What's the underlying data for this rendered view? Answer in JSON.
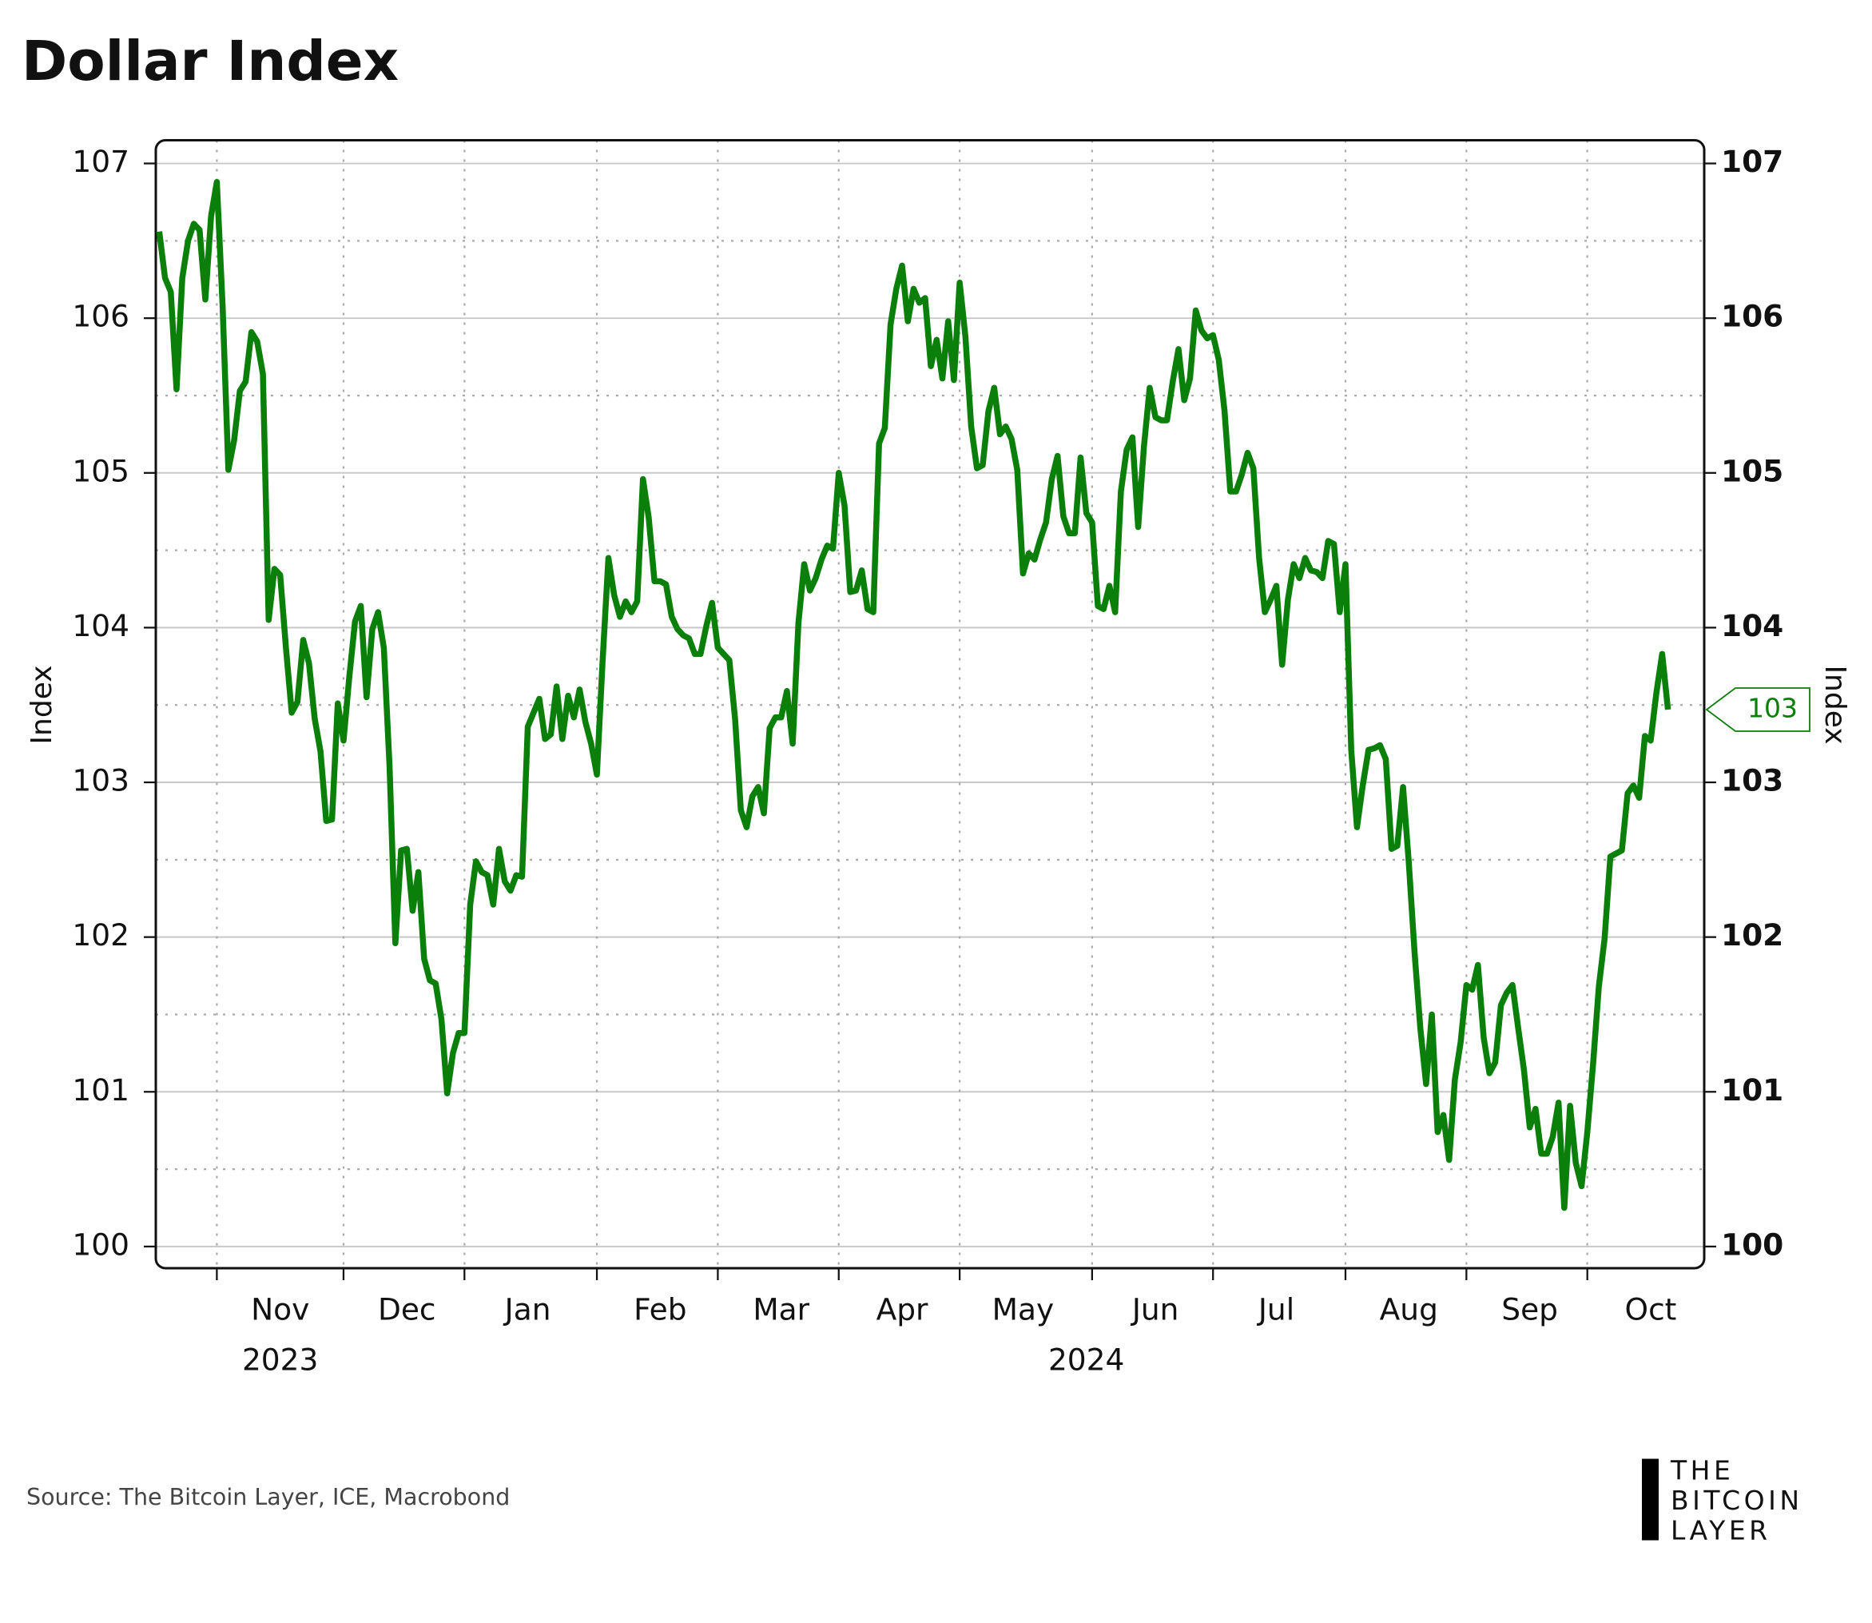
{
  "chart_data": {
    "type": "line",
    "title": "Dollar Index",
    "y_label": "Index",
    "y2_label": "Index",
    "source": "Source: The Bitcoin Layer, ICE, Macrobond",
    "logo": [
      "THE",
      "BITCOIN",
      "LAYER"
    ],
    "last_label": "103",
    "grid": true,
    "xlim": [
      -0.6,
      268.3
    ],
    "xticks": [
      {
        "value": 10,
        "label": "Nov"
      },
      {
        "value": 32,
        "label": "Dec"
      },
      {
        "value": 53,
        "label": "Jan"
      },
      {
        "value": 76,
        "label": "Feb"
      },
      {
        "value": 97,
        "label": "Mar"
      },
      {
        "value": 118,
        "label": "Apr"
      },
      {
        "value": 139,
        "label": "May"
      },
      {
        "value": 162,
        "label": "Jun"
      },
      {
        "value": 183,
        "label": "Jul"
      },
      {
        "value": 206,
        "label": "Aug"
      },
      {
        "value": 227,
        "label": "Sep"
      },
      {
        "value": 248,
        "label": "Oct"
      }
    ],
    "year_labels": [
      {
        "value": 10,
        "label": "2023"
      },
      {
        "value": 150,
        "label": "2024"
      }
    ],
    "ylim": [
      99.86,
      107.15
    ],
    "yticks": [
      100,
      101,
      102,
      103,
      104,
      105,
      106,
      107
    ],
    "y_minor_ticks": [
      100.5,
      101.5,
      102.5,
      103.5,
      104.5,
      105.5,
      106.5
    ],
    "y2lim": [
      99.86,
      107.15
    ],
    "y2ticks": [
      100,
      101,
      102,
      103,
      104,
      105,
      106,
      107
    ],
    "series": [
      {
        "name": "Dollar Index",
        "color": "#0a7f0a",
        "values": [
          106.56,
          106.26,
          106.17,
          105.54,
          106.26,
          106.5,
          106.61,
          106.57,
          106.12,
          106.66,
          106.88,
          106.08,
          105.02,
          105.21,
          105.53,
          105.59,
          105.91,
          105.85,
          105.64,
          104.05,
          104.38,
          104.34,
          103.87,
          103.45,
          103.52,
          103.92,
          103.77,
          103.41,
          103.2,
          102.75,
          102.76,
          103.51,
          103.27,
          103.68,
          104.04,
          104.14,
          103.55,
          103.99,
          104.1,
          103.87,
          103.1,
          101.96,
          102.56,
          102.57,
          102.17,
          102.42,
          101.86,
          101.72,
          101.7,
          101.47,
          100.99,
          101.25,
          101.38,
          101.38,
          102.21,
          102.49,
          102.42,
          102.4,
          102.21,
          102.57,
          102.36,
          102.3,
          102.4,
          102.39,
          103.36,
          103.45,
          103.54,
          103.28,
          103.31,
          103.62,
          103.28,
          103.56,
          103.42,
          103.6,
          103.39,
          103.25,
          103.05,
          103.79,
          104.45,
          104.21,
          104.07,
          104.17,
          104.1,
          104.17,
          104.96,
          104.71,
          104.3,
          104.3,
          104.28,
          104.07,
          103.99,
          103.95,
          103.93,
          103.83,
          103.83,
          104.01,
          104.16,
          103.87,
          103.83,
          103.79,
          103.41,
          102.82,
          102.71,
          102.91,
          102.97,
          102.8,
          103.35,
          103.42,
          103.42,
          103.59,
          103.25,
          104.03,
          104.41,
          104.24,
          104.32,
          104.44,
          104.53,
          104.51,
          105.0,
          104.79,
          104.23,
          104.24,
          104.37,
          104.12,
          104.1,
          105.19,
          105.29,
          105.96,
          106.19,
          106.34,
          105.98,
          106.19,
          106.1,
          106.13,
          105.69,
          105.86,
          105.61,
          105.98,
          105.6,
          106.23,
          105.88,
          105.3,
          105.03,
          105.05,
          105.4,
          105.55,
          105.25,
          105.3,
          105.22,
          105.02,
          104.35,
          104.48,
          104.44,
          104.57,
          104.68,
          104.96,
          105.11,
          104.72,
          104.61,
          104.61,
          105.1,
          104.74,
          104.68,
          104.14,
          104.12,
          104.27,
          104.1,
          104.88,
          105.15,
          105.23,
          104.65,
          105.17,
          105.55,
          105.36,
          105.34,
          105.34,
          105.59,
          105.8,
          105.47,
          105.61,
          106.05,
          105.92,
          105.87,
          105.89,
          105.73,
          105.4,
          104.88,
          104.88,
          104.99,
          105.13,
          105.03,
          104.45,
          104.1,
          104.18,
          104.27,
          103.76,
          104.18,
          104.41,
          104.32,
          104.45,
          104.37,
          104.36,
          104.32,
          104.56,
          104.54,
          104.1,
          104.41,
          103.21,
          102.71,
          102.98,
          103.21,
          103.22,
          103.24,
          103.15,
          102.57,
          102.59,
          102.97,
          102.48,
          101.9,
          101.41,
          101.05,
          101.5,
          100.74,
          100.85,
          100.56,
          101.08,
          101.32,
          101.69,
          101.66,
          101.82,
          101.35,
          101.12,
          101.19,
          101.56,
          101.64,
          101.69,
          101.41,
          101.14,
          100.77,
          100.89,
          100.6,
          100.6,
          100.71,
          100.93,
          100.25,
          100.91,
          100.54,
          100.39,
          100.74,
          101.18,
          101.68,
          101.99,
          102.52,
          102.54,
          102.56,
          102.93,
          102.98,
          102.9,
          103.3,
          103.27,
          103.58,
          103.83,
          103.47
        ]
      }
    ]
  }
}
